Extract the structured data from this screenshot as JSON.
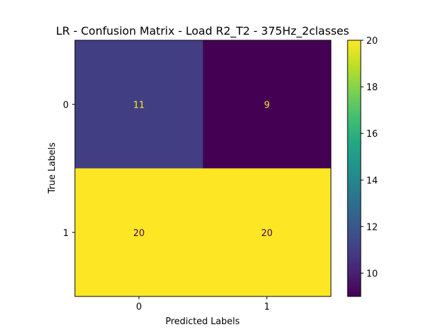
{
  "chart_data": {
    "type": "heatmap",
    "title": "LR - Confusion Matrix - Load R2_T2 - 375Hz_2classes",
    "xlabel": "Predicted Labels",
    "ylabel": "True Labels",
    "x_categories": [
      "0",
      "1"
    ],
    "y_categories": [
      "0",
      "1"
    ],
    "values": [
      [
        11,
        9
      ],
      [
        20,
        20
      ]
    ],
    "cell_labels": [
      [
        "11",
        "9"
      ],
      [
        "20",
        "20"
      ]
    ],
    "colormap": "viridis",
    "colorbar": {
      "min": 9,
      "max": 20,
      "ticks": [
        10,
        12,
        14,
        16,
        18,
        20
      ],
      "tick_labels": [
        "10",
        "12",
        "14",
        "16",
        "18",
        "20"
      ]
    },
    "label_colors": {
      "on_dark": "#fde725",
      "on_light": "#440154"
    }
  }
}
